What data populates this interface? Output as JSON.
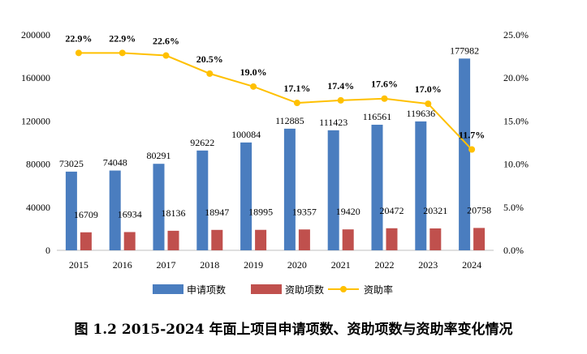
{
  "chart_data": {
    "type": "bar",
    "categories": [
      "2015",
      "2016",
      "2017",
      "2018",
      "2019",
      "2020",
      "2021",
      "2022",
      "2023",
      "2024"
    ],
    "series": [
      {
        "name": "申请项数",
        "kind": "bar",
        "axis": "left",
        "color": "#4a7dbf",
        "values": [
          73025,
          74048,
          80291,
          92622,
          100084,
          112885,
          111423,
          116561,
          119636,
          177982
        ],
        "labels": [
          "73025",
          "74048",
          "80291",
          "92622",
          "100084",
          "112885",
          "111423",
          "116561",
          "119636",
          "177982"
        ]
      },
      {
        "name": "资助项数",
        "kind": "bar",
        "axis": "left",
        "color": "#c0504d",
        "values": [
          16709,
          16934,
          18136,
          18947,
          18995,
          19357,
          19420,
          20472,
          20321,
          20758
        ],
        "labels": [
          "16709",
          "16934",
          "18136",
          "18947",
          "18995",
          "19357",
          "19420",
          "20472",
          "20321",
          "20758"
        ]
      },
      {
        "name": "资助率",
        "kind": "line",
        "axis": "right",
        "color": "#ffc000",
        "values": [
          22.9,
          22.9,
          22.6,
          20.5,
          19.0,
          17.1,
          17.4,
          17.6,
          17.0,
          11.7
        ],
        "labels": [
          "22.9%",
          "22.9%",
          "22.6%",
          "20.5%",
          "19.0%",
          "17.1%",
          "17.4%",
          "17.6%",
          "17.0%",
          "11.7%"
        ]
      }
    ],
    "y_left": {
      "min": 0,
      "max": 200000,
      "ticks": [
        "0",
        "40000",
        "80000",
        "120000",
        "160000",
        "200000"
      ],
      "tick_values": [
        0,
        40000,
        80000,
        120000,
        160000,
        200000
      ]
    },
    "y_right": {
      "min": 0,
      "max": 25,
      "ticks": [
        "0.0%",
        "5.0%",
        "10.0%",
        "15.0%",
        "20.0%",
        "25.0%"
      ],
      "tick_values": [
        0,
        5,
        10,
        15,
        20,
        25
      ]
    },
    "grid": false,
    "legend_position": "bottom"
  },
  "caption": "图 1.2 2015-2024 年面上项目申请项数、资助项数与资助率变化情况"
}
